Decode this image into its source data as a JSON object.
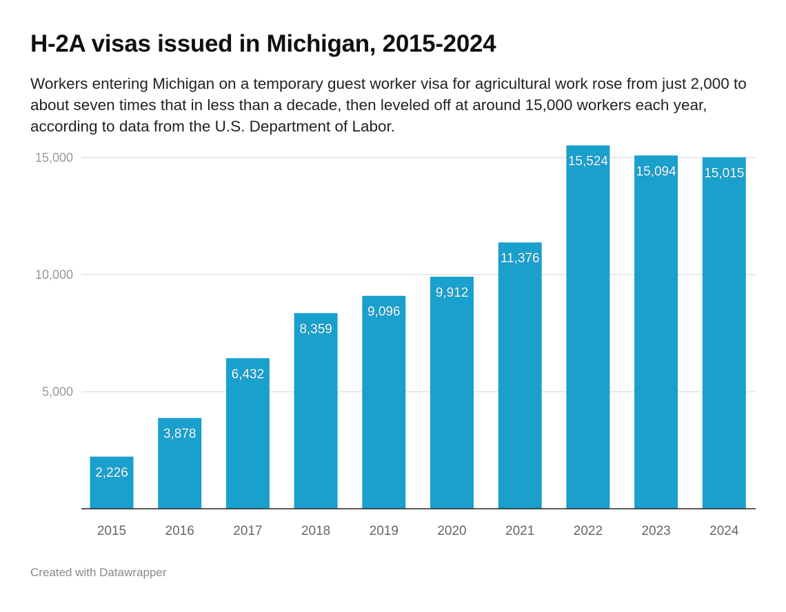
{
  "chart_data": {
    "type": "bar",
    "title": "H-2A visas issued in Michigan, 2015-2024",
    "subtitle": "Workers entering Michigan on a temporary guest worker visa for agricultural work rose from just 2,000 to about seven times that in less than a decade, then leveled off at around 15,000 workers each year, according to data from the U.S. Department of Labor.",
    "categories": [
      "2015",
      "2016",
      "2017",
      "2018",
      "2019",
      "2020",
      "2021",
      "2022",
      "2023",
      "2024"
    ],
    "values": [
      2226,
      3878,
      6432,
      8359,
      9096,
      9912,
      11376,
      15524,
      15094,
      15015
    ],
    "data_labels": [
      "2,226",
      "3,878",
      "6,432",
      "8,359",
      "9,096",
      "9,912",
      "11,376",
      "15,524",
      "15,094",
      "15,015"
    ],
    "yticks": [
      5000,
      10000,
      15000
    ],
    "ytick_labels": [
      "5,000",
      "10,000",
      "15,000"
    ],
    "ylim": [
      0,
      15524
    ],
    "grid": true,
    "bar_color": "#1aa0cc",
    "xlabel": "",
    "ylabel": ""
  },
  "footer": "Created with Datawrapper"
}
